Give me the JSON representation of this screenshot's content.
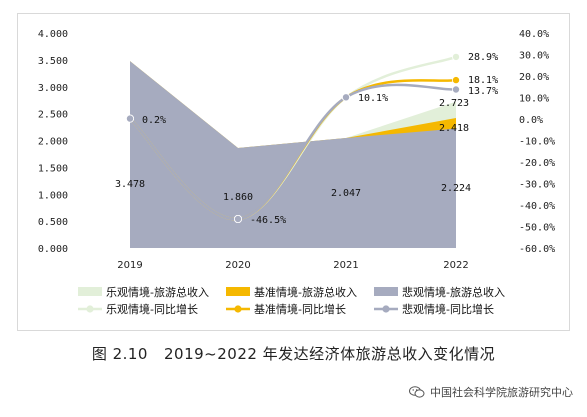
{
  "chart_data": {
    "type": "area",
    "categories": [
      "2019",
      "2020",
      "2021",
      "2022"
    ],
    "y_left_ticks": [
      "4.000",
      "3.500",
      "3.000",
      "2.500",
      "2.000",
      "1.500",
      "1.000",
      "0.500",
      "0.000"
    ],
    "y_right_ticks": [
      "40.0%",
      "30.0%",
      "20.0%",
      "10.0%",
      "0.0%",
      "-10.0%",
      "-20.0%",
      "-30.0%",
      "-40.0%",
      "-50.0%",
      "-60.0%"
    ],
    "ylim_left": [
      0,
      4
    ],
    "ylim_right": [
      -60,
      40
    ],
    "grid": false,
    "legend_position": "bottom",
    "series": [
      {
        "name": "乐观情境-旅游总收入",
        "kind": "area",
        "axis": "left",
        "color": "#e2efd9",
        "values": [
          3.478,
          1.86,
          2.047,
          2.723
        ]
      },
      {
        "name": "基准情境-旅游总收入",
        "kind": "area",
        "axis": "left",
        "color": "#f5b800",
        "values": [
          3.478,
          1.86,
          2.047,
          2.418
        ]
      },
      {
        "name": "悲观情境-旅游总收入",
        "kind": "area",
        "axis": "left",
        "color": "#a6abbf",
        "values": [
          3.478,
          1.86,
          2.047,
          2.224
        ]
      },
      {
        "name": "乐观情境-同比增长",
        "kind": "line",
        "axis": "right",
        "color": "#e2efd9",
        "values": [
          0.2,
          -46.5,
          10.1,
          28.9
        ]
      },
      {
        "name": "基准情境-同比增长",
        "kind": "line",
        "axis": "right",
        "color": "#f5b800",
        "values": [
          0.2,
          -46.5,
          10.1,
          18.1
        ]
      },
      {
        "name": "悲观情境-同比增长",
        "kind": "line",
        "axis": "right",
        "color": "#a6abbf",
        "values": [
          0.2,
          -46.5,
          10.1,
          13.7
        ]
      }
    ],
    "data_labels": {
      "area": [
        "3.478",
        "1.860",
        "2.047",
        "2.224",
        "2.418",
        "2.723"
      ],
      "line": [
        "0.2%",
        "-46.5%",
        "10.1%",
        "28.9%",
        "18.1%",
        "13.7%"
      ]
    }
  },
  "caption": {
    "figure_number": "图 2.10",
    "title": "2019~2022 年发达经济体旅游总收入变化情况"
  },
  "watermark": {
    "text": "中国社会科学院旅游研究中心"
  }
}
